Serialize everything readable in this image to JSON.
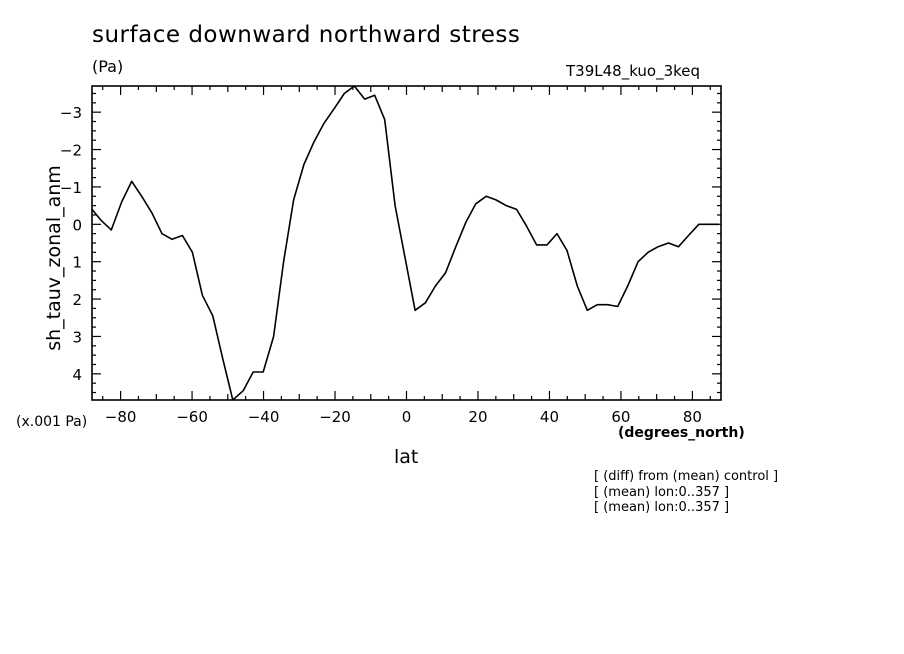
{
  "chart_data": {
    "type": "line",
    "title": "surface downward northward stress",
    "units": "(Pa)",
    "run_label": "T39L48_kuo_3keq",
    "ylabel": "sh_tauv_zonal_anm",
    "xlabel": "lat",
    "x_units": "(degrees_north)",
    "y_multiplier": "(x.001 Pa)",
    "xlim": [
      -88,
      88
    ],
    "ylim": [
      4.7,
      -3.7
    ],
    "y_inverted": true,
    "x_ticks": [
      -80,
      -60,
      -40,
      -20,
      0,
      20,
      40,
      60,
      80
    ],
    "x_tick_labels": [
      "−80",
      "−60",
      "−40",
      "−20",
      "0",
      "20",
      "40",
      "60",
      "80"
    ],
    "y_ticks": [
      -3,
      -2,
      -1,
      0,
      1,
      2,
      3,
      4
    ],
    "y_tick_labels": [
      "−3",
      "−2",
      "−1",
      "0",
      "1",
      "2",
      "3",
      "4"
    ],
    "grid": false,
    "series": [
      {
        "x": [
          -88,
          -85.4,
          -82.6,
          -79.7,
          -76.9,
          -74.1,
          -71.2,
          -68.4,
          -65.6,
          -62.7,
          -59.9,
          -57.1,
          -54.2,
          -51.4,
          -48.6,
          -45.7,
          -42.9,
          -40.1,
          -37.2,
          -34.4,
          -31.6,
          -28.7,
          -25.9,
          -23.1,
          -20.2,
          -17.4,
          -14.6,
          -11.7,
          -8.9,
          -6.1,
          -3.2,
          -0.4,
          2.4,
          5.3,
          8.1,
          10.9,
          13.8,
          16.6,
          19.4,
          22.3,
          25.1,
          27.9,
          30.8,
          33.6,
          36.4,
          39.3,
          42.1,
          44.9,
          47.8,
          50.6,
          53.4,
          56.3,
          59.1,
          61.9,
          64.8,
          67.6,
          70.4,
          73.3,
          76.1,
          78.9,
          81.8,
          84.6,
          87.4
        ],
        "y": [
          -0.4,
          -0.1,
          0.15,
          -0.6,
          -1.15,
          -0.75,
          -0.3,
          0.25,
          0.4,
          0.3,
          0.75,
          1.9,
          2.45,
          3.6,
          4.7,
          4.45,
          3.95,
          3.95,
          3.0,
          1.0,
          -0.65,
          -1.6,
          -2.2,
          -2.7,
          -3.1,
          -3.5,
          -3.7,
          -3.35,
          -3.45,
          -2.8,
          -0.5,
          0.9,
          2.3,
          2.1,
          1.65,
          1.3,
          0.6,
          -0.05,
          -0.55,
          -0.75,
          -0.65,
          -0.5,
          -0.4,
          0.05,
          0.55,
          0.55,
          0.25,
          0.7,
          1.65,
          2.3,
          2.15,
          2.15,
          2.2,
          1.65,
          1.0,
          0.75,
          0.6,
          0.5,
          0.6,
          0.3,
          0.0,
          0.0,
          0.0
        ]
      }
    ]
  },
  "notes": [
    "[ (diff) from (mean) control ]",
    "[ (mean) lon:0..357 ]",
    "[ (mean) lon:0..357 ]"
  ]
}
